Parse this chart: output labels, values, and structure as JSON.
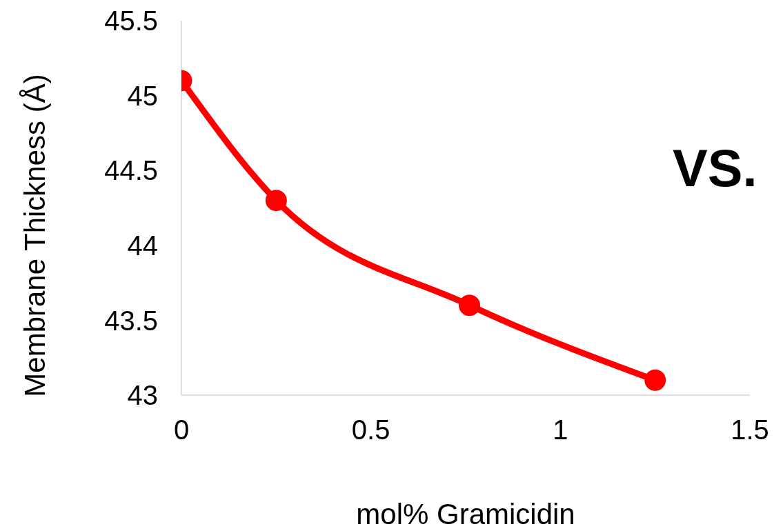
{
  "chart_data": {
    "type": "line",
    "xlabel": "mol% Gramicidin",
    "ylabel": "Membrane Thickness (Å)",
    "x": [
      0,
      0.25,
      0.76,
      1.25
    ],
    "series": [
      {
        "color": "#ff0000",
        "values": [
          45.1,
          44.3,
          43.6,
          43.1
        ]
      }
    ],
    "xlim": [
      0,
      1.5
    ],
    "xticks": [
      0,
      0.5,
      1,
      1.5
    ],
    "ylim": [
      43,
      45.5
    ],
    "yticks": [
      43,
      43.5,
      44,
      44.5,
      45,
      45.5
    ],
    "marker": "circle",
    "line_style": "solid",
    "annotations": [
      "VS."
    ]
  }
}
